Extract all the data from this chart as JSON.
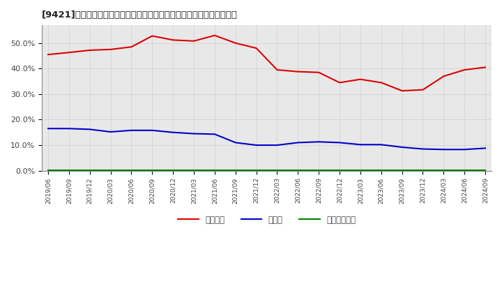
{
  "title": "[9421]　自己資本、のれん、繰延税金資産の総資産に対する比率の推移",
  "xlabels": [
    "2019/06",
    "2019/09",
    "2019/12",
    "2020/03",
    "2020/06",
    "2020/09",
    "2020/12",
    "2021/03",
    "2021/06",
    "2021/09",
    "2021/12",
    "2022/03",
    "2022/06",
    "2022/09",
    "2022/12",
    "2023/03",
    "2023/06",
    "2023/09",
    "2023/12",
    "2024/03",
    "2024/06",
    "2024/09"
  ],
  "jikoshihon": [
    45.5,
    46.3,
    47.2,
    47.5,
    48.5,
    52.8,
    51.2,
    50.8,
    53.0,
    50.0,
    48.0,
    39.5,
    38.8,
    38.5,
    34.5,
    35.8,
    34.5,
    31.3,
    31.7,
    37.0,
    39.5,
    40.5
  ],
  "noren": [
    16.5,
    16.5,
    16.2,
    15.2,
    15.8,
    15.8,
    15.0,
    14.5,
    14.3,
    11.0,
    10.0,
    10.0,
    11.0,
    11.3,
    11.0,
    10.2,
    10.2,
    9.2,
    8.5,
    8.3,
    8.3,
    8.8
  ],
  "kurinobezeikin": [
    0.3,
    0.3,
    0.3,
    0.3,
    0.3,
    0.3,
    0.3,
    0.3,
    0.3,
    0.3,
    0.3,
    0.3,
    0.3,
    0.3,
    0.3,
    0.3,
    0.3,
    0.3,
    0.3,
    0.3,
    0.3,
    0.3
  ],
  "color_jikoshihon": "#dd0000",
  "color_noren": "#0000cc",
  "color_kurinobezeikin": "#008000",
  "ylim": [
    0,
    57
  ],
  "yticks": [
    0,
    10,
    20,
    30,
    40,
    50
  ],
  "legend_labels": [
    "自己資本",
    "のれん",
    "繰延税金資産"
  ],
  "bg_color": "#ffffff",
  "plot_bg_color": "#e8e8e8"
}
